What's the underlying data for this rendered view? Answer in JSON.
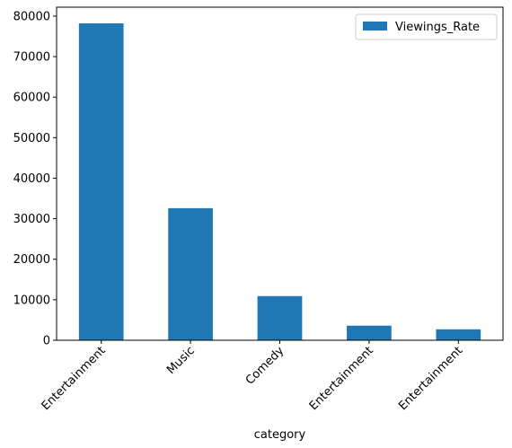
{
  "chart_data": {
    "type": "bar",
    "categories": [
      "Entertainment",
      "Music",
      "Comedy",
      "Entertainment",
      "Entertainment"
    ],
    "series": [
      {
        "name": "Viewings_Rate",
        "values": [
          78200,
          32600,
          10900,
          3600,
          2700
        ],
        "color": "#1f77b4"
      }
    ],
    "xlabel": "category",
    "ylabel": "",
    "ylim": [
      0,
      82200
    ],
    "yticks": [
      0,
      10000,
      20000,
      30000,
      40000,
      50000,
      60000,
      70000,
      80000
    ],
    "grid": false,
    "legend": {
      "position": "top-right"
    }
  }
}
